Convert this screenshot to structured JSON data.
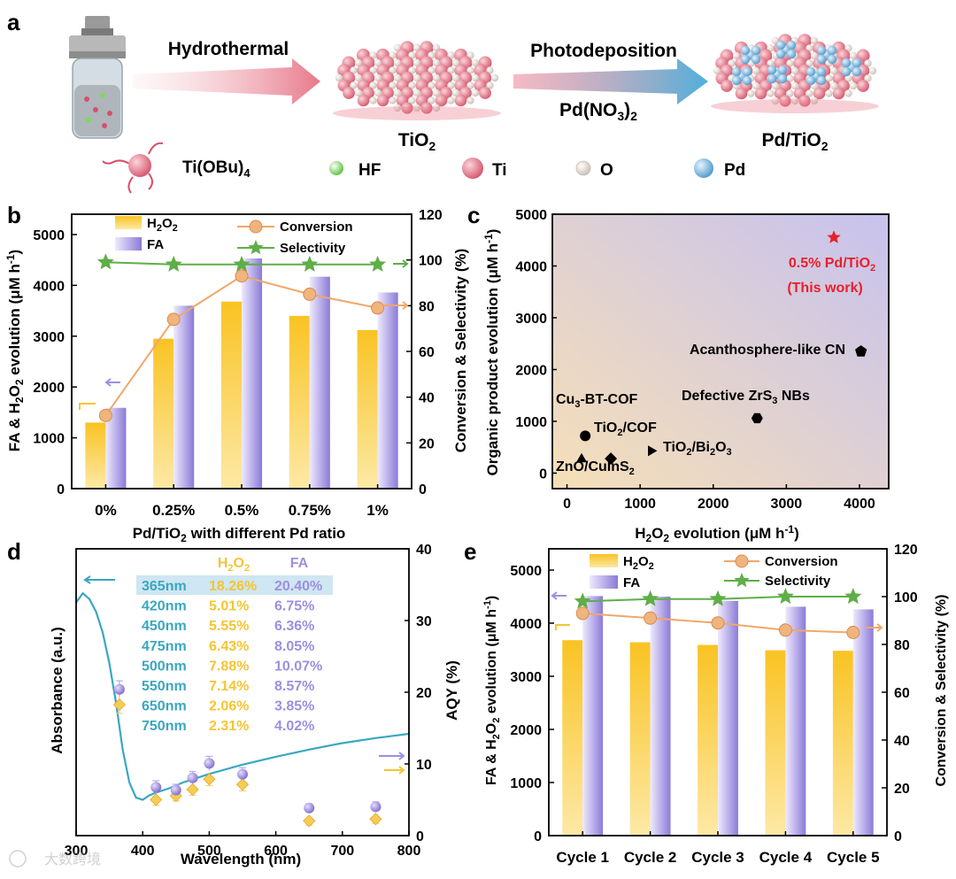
{
  "panel_a": {
    "label": "a",
    "arrow1_label": "Hydrothermal",
    "arrow2_label": "Photodeposition",
    "reagent": "Pd(NO3)2",
    "product1": "TiO2",
    "product2": "Pd/TiO2",
    "legend": [
      {
        "name": "Ti(OBu)4",
        "color": "#d84f6a"
      },
      {
        "name": "HF",
        "color": "#7ed957"
      },
      {
        "name": "Ti",
        "color": "#e8788a"
      },
      {
        "name": "O",
        "color": "#f2ece4"
      },
      {
        "name": "Pd",
        "color": "#7db8e0"
      }
    ]
  },
  "colors": {
    "h2o2": "#f5c532",
    "fa": "#9d8fe0",
    "conversion": "#f0a868",
    "selectivity": "#5fae47",
    "cyan": "#3aa7c0",
    "star": "#e8202a"
  },
  "chart_data": [
    {
      "panel": "b",
      "type": "bar",
      "categories": [
        "0%",
        "0.25%",
        "0.5%",
        "0.75%",
        "1%"
      ],
      "series": [
        {
          "name": "H2O2",
          "axis": "left",
          "values": [
            1300,
            2950,
            3680,
            3400,
            3120
          ]
        },
        {
          "name": "FA",
          "axis": "left",
          "values": [
            1590,
            3600,
            4530,
            4170,
            3860
          ]
        },
        {
          "name": "Conversion",
          "axis": "right",
          "type": "line",
          "values": [
            32,
            74,
            93,
            85,
            79
          ]
        },
        {
          "name": "Selectivity",
          "axis": "right",
          "type": "line",
          "values": [
            99,
            98,
            98,
            98,
            98
          ]
        }
      ],
      "xlabel": "Pd/TiO2 with different Pd ratio",
      "ylabel": "FA & H2O2 evolution (μM h-1)",
      "y2label": "Conversion & Selectivity (%)",
      "ylim": [
        0,
        5400
      ],
      "yticks": [
        0,
        1000,
        2000,
        3000,
        4000,
        5000
      ],
      "y2lim": [
        0,
        120
      ],
      "y2ticks": [
        0,
        20,
        40,
        60,
        80,
        100,
        120
      ]
    },
    {
      "panel": "c",
      "type": "scatter",
      "points": [
        {
          "label": "0.5% Pd/TiO2 (This work)",
          "x": 3650,
          "y": 4550,
          "marker": "star"
        },
        {
          "label": "Acanthosphere-like CN",
          "x": 4020,
          "y": 2350,
          "marker": "pentagon"
        },
        {
          "label": "Defective ZrS3 NBs",
          "x": 2600,
          "y": 1060,
          "marker": "hexagon"
        },
        {
          "label": "Cu3-BT-COF",
          "x": 250,
          "y": 720,
          "marker": "circle"
        },
        {
          "label": "TiO2/COF",
          "x": 600,
          "y": 280,
          "marker": "diamond"
        },
        {
          "label": "TiO2/Bi2O3",
          "x": 1150,
          "y": 430,
          "marker": "triangle-right"
        },
        {
          "label": "ZnO/CuInS2",
          "x": 200,
          "y": 270,
          "marker": "triangle-up"
        }
      ],
      "xlabel": "H2O2 evolution (μM h-1)",
      "ylabel": "Organic product evolution (μM h-1)",
      "xlim": [
        -200,
        4400
      ],
      "xticks": [
        0,
        1000,
        2000,
        3000,
        4000
      ],
      "ylim": [
        -300,
        5000
      ],
      "yticks": [
        0,
        1000,
        2000,
        3000,
        4000,
        5000
      ]
    },
    {
      "panel": "d",
      "type": "line",
      "absorbance": {
        "x": [
          300,
          310,
          320,
          330,
          340,
          350,
          360,
          370,
          380,
          390,
          400,
          410,
          420,
          440,
          460,
          500,
          550,
          600,
          650,
          700,
          750,
          800
        ],
        "y": [
          32.5,
          33.8,
          33,
          31.2,
          28.3,
          24,
          18.5,
          12,
          7.4,
          5.3,
          5,
          5.6,
          6,
          6.6,
          7.4,
          8.6,
          9.9,
          11,
          12,
          12.9,
          13.6,
          14.2
        ]
      },
      "aqy_points": {
        "x": [
          365,
          420,
          450,
          475,
          500,
          550,
          650,
          750
        ],
        "h2o2": [
          18.26,
          5.01,
          5.55,
          6.43,
          7.88,
          7.14,
          2.06,
          2.31
        ],
        "fa": [
          20.4,
          6.75,
          6.36,
          8.05,
          10.07,
          8.57,
          3.85,
          4.02
        ],
        "h2o2_err": [
          1.2,
          0.8,
          0.7,
          0.8,
          0.9,
          0.9,
          0.6,
          0.6
        ],
        "fa_err": [
          1.2,
          0.9,
          0.8,
          0.9,
          1.0,
          0.9,
          0.6,
          0.7
        ]
      },
      "table": {
        "headers": [
          "H2O2",
          "FA"
        ],
        "rows": [
          {
            "wl": "365nm",
            "h2o2": "18.26%",
            "fa": "20.40%"
          },
          {
            "wl": "420nm",
            "h2o2": "5.01%",
            "fa": "6.75%"
          },
          {
            "wl": "450nm",
            "h2o2": "5.55%",
            "fa": "6.36%"
          },
          {
            "wl": "475nm",
            "h2o2": "6.43%",
            "fa": "8.05%"
          },
          {
            "wl": "500nm",
            "h2o2": "7.88%",
            "fa": "10.07%"
          },
          {
            "wl": "550nm",
            "h2o2": "7.14%",
            "fa": "8.57%"
          },
          {
            "wl": "650nm",
            "h2o2": "2.06%",
            "fa": "3.85%"
          },
          {
            "wl": "750nm",
            "h2o2": "2.31%",
            "fa": "4.02%"
          }
        ]
      },
      "xlabel": "Wavelength (nm)",
      "ylabel": "Absorbance (a.u.)",
      "y2label": "AQY (%)",
      "xlim": [
        300,
        800
      ],
      "xticks": [
        300,
        400,
        500,
        600,
        700,
        800
      ],
      "y2lim": [
        0,
        40
      ],
      "y2ticks": [
        0,
        10,
        20,
        30,
        40
      ]
    },
    {
      "panel": "e",
      "type": "bar",
      "categories": [
        "Cycle 1",
        "Cycle 2",
        "Cycle 3",
        "Cycle 4",
        "Cycle 5"
      ],
      "series": [
        {
          "name": "H2O2",
          "axis": "left",
          "values": [
            3680,
            3640,
            3590,
            3490,
            3480
          ]
        },
        {
          "name": "FA",
          "axis": "left",
          "values": [
            4510,
            4500,
            4420,
            4310,
            4260
          ]
        },
        {
          "name": "Conversion",
          "axis": "right",
          "type": "line",
          "values": [
            93,
            91,
            89,
            86,
            85
          ]
        },
        {
          "name": "Selectivity",
          "axis": "right",
          "type": "line",
          "values": [
            98,
            99,
            99,
            100,
            100
          ]
        }
      ],
      "xlabel": "",
      "ylabel": "FA & H2O2 evolution (μM h-1)",
      "y2label": "Conversion & Selectivity (%)",
      "ylim": [
        0,
        5400
      ],
      "yticks": [
        0,
        1000,
        2000,
        3000,
        4000,
        5000
      ],
      "y2lim": [
        0,
        120
      ],
      "y2ticks": [
        0,
        20,
        40,
        60,
        80,
        100,
        120
      ]
    }
  ],
  "watermark": "大数跨境"
}
